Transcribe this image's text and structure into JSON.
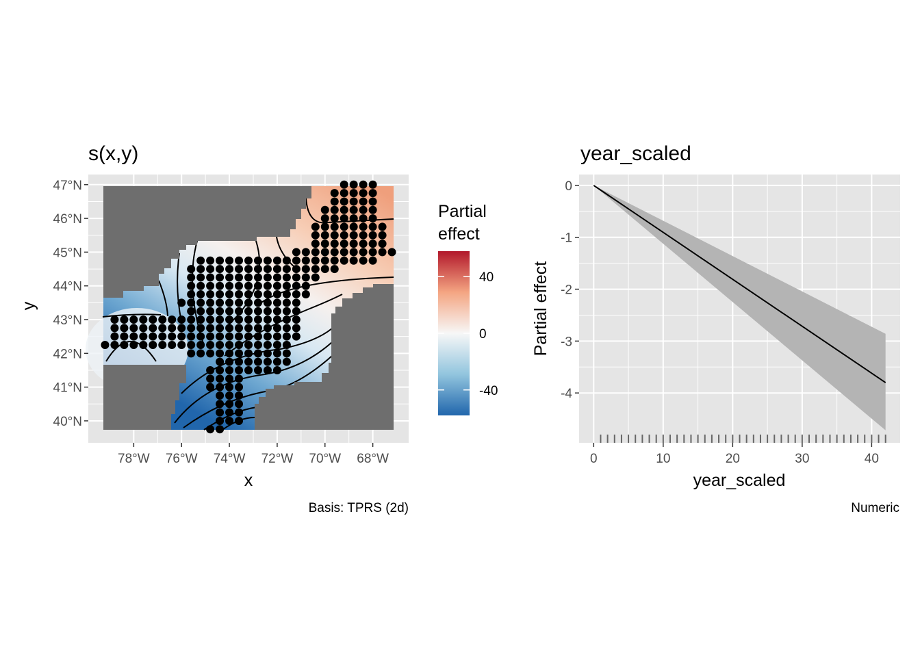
{
  "colors": {
    "panel_bg": "#e5e5e5",
    "grid": "#ffffff",
    "land": "#6e6e6e",
    "ribbon": "#b4b4b4",
    "line": "#000000",
    "div_low": "#2166ac",
    "div_mid": "#f7f7f7",
    "div_high": "#b2182b"
  },
  "chart_data": [
    {
      "type": "heatmap",
      "title": "s(x,y)",
      "xlabel": "x",
      "ylabel": "y",
      "caption": "Basis: TPRS (2d)",
      "xlim": [
        -79.9,
        -66.5
      ],
      "ylim": [
        39.35,
        47.3
      ],
      "x_ticks": [
        -78,
        -76,
        -74,
        -72,
        -70,
        -68
      ],
      "x_tick_labels": [
        "78°W",
        "76°W",
        "74°W",
        "72°W",
        "70°W",
        "68°W"
      ],
      "y_ticks": [
        40,
        41,
        42,
        43,
        44,
        45,
        46,
        47
      ],
      "y_tick_labels": [
        "40°N",
        "41°N",
        "42°N",
        "43°N",
        "44°N",
        "45°N",
        "46°N",
        "47°N"
      ],
      "legend": {
        "title_lines": [
          "Partial",
          "effect"
        ],
        "min": -58,
        "max": 58,
        "ticks": [
          40,
          0,
          -40
        ],
        "tick_labels": [
          "40",
          "0",
          "-40"
        ],
        "placement": "right"
      },
      "rows": [
        {
          "y": 47.0,
          "x_start": -69.2,
          "x_end": -68.0
        },
        {
          "y": 46.75,
          "x_start": -69.6,
          "x_end": -67.8
        },
        {
          "y": 46.5,
          "x_start": -69.6,
          "x_end": -67.8
        },
        {
          "y": 46.25,
          "x_start": -70.0,
          "x_end": -67.8
        },
        {
          "y": 46.0,
          "x_start": -70.0,
          "x_end": -67.8
        },
        {
          "y": 45.75,
          "x_start": -70.4,
          "x_end": -67.4
        },
        {
          "y": 45.5,
          "x_start": -70.4,
          "x_end": -67.4
        },
        {
          "y": 45.25,
          "x_start": -70.4,
          "x_end": -67.4
        },
        {
          "y": 45.0,
          "x_start": -71.2,
          "x_end": -67.0
        },
        {
          "y": 44.75,
          "x_start": -75.2,
          "x_end": -67.8
        },
        {
          "y": 44.5,
          "x_start": -75.6,
          "x_end": -69.6
        },
        {
          "y": 44.25,
          "x_start": -75.6,
          "x_end": -70.4
        },
        {
          "y": 44.0,
          "x_start": -75.6,
          "x_end": -70.8
        },
        {
          "y": 43.75,
          "x_start": -75.6,
          "x_end": -70.8
        },
        {
          "y": 43.5,
          "x_start": -76.0,
          "x_end": -71.2
        },
        {
          "y": 43.25,
          "x_start": -75.6,
          "x_end": -71.2
        },
        {
          "y": 43.0,
          "x_start": -78.8,
          "x_end": -71.2
        },
        {
          "y": 42.75,
          "x_start": -78.8,
          "x_end": -71.2
        },
        {
          "y": 42.5,
          "x_start": -78.8,
          "x_end": -71.2
        },
        {
          "y": 42.25,
          "x_start": -79.2,
          "x_end": -71.6
        },
        {
          "y": 42.0,
          "x_start": -75.6,
          "x_end": -71.6
        },
        {
          "y": 41.75,
          "x_start": -74.4,
          "x_end": -71.6
        },
        {
          "y": 41.5,
          "x_start": -74.8,
          "x_end": -72.0
        },
        {
          "y": 41.25,
          "x_start": -74.8,
          "x_end": -73.6
        },
        {
          "y": 41.0,
          "x_start": -74.8,
          "x_end": -73.6
        },
        {
          "y": 40.75,
          "x_start": -74.4,
          "x_end": -73.6
        },
        {
          "y": 40.5,
          "x_start": -74.4,
          "x_end": -73.6
        },
        {
          "y": 40.25,
          "x_start": -74.4,
          "x_end": -73.6
        },
        {
          "y": 40.0,
          "x_start": -74.4,
          "x_end": -73.6
        },
        {
          "y": 39.75,
          "x_start": -74.8,
          "x_end": -74.4
        }
      ]
    },
    {
      "type": "line",
      "title": "year_scaled",
      "xlabel": "year_scaled",
      "ylabel": "Partial effect",
      "caption": "Numeric",
      "xlim": [
        -2.1,
        44.1
      ],
      "ylim": [
        -4.96,
        0.21
      ],
      "x_ticks": [
        0,
        10,
        20,
        30,
        40
      ],
      "y_ticks": [
        0,
        -1,
        -2,
        -3,
        -4
      ],
      "x": [
        0,
        42
      ],
      "estimate": [
        0,
        -3.8
      ],
      "ci_lower": [
        0,
        -4.72
      ],
      "ci_upper": [
        0,
        -2.86
      ],
      "rug_x": [
        1,
        2,
        3,
        4,
        5,
        6,
        7,
        8,
        9,
        10,
        11,
        12,
        13,
        14,
        15,
        16,
        17,
        18,
        19,
        20,
        21,
        22,
        23,
        24,
        25,
        26,
        27,
        28,
        29,
        30,
        31,
        32,
        33,
        34,
        35,
        36,
        37,
        38,
        39,
        40,
        41,
        42
      ]
    }
  ]
}
